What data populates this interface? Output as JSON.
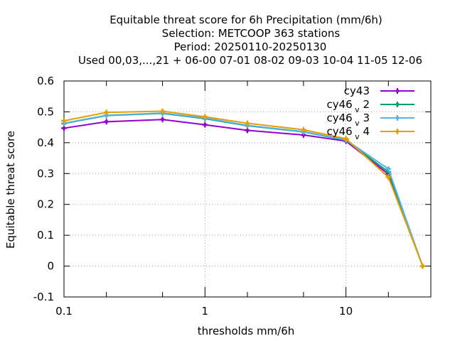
{
  "chart_data": {
    "type": "line",
    "title_lines": [
      "Equitable threat score  for 6h Precipitation (mm/6h)",
      "Selection: METCOOP    363 stations",
      "Period: 20250110-20250130",
      "Used  00,03,...,21  + 06-00 07-01 08-02 09-03 10-04 11-05 12-06"
    ],
    "xlabel": "thresholds mm/6h",
    "ylabel": "Equitable threat score",
    "x_scale": "log",
    "xlim": [
      0.1,
      40
    ],
    "ylim": [
      -0.1,
      0.6
    ],
    "x_ticks": [
      {
        "value": 0.1,
        "label": "0.1"
      },
      {
        "value": 1,
        "label": "1"
      },
      {
        "value": 10,
        "label": "10"
      }
    ],
    "y_ticks": [
      {
        "value": -0.1,
        "label": "-0.1"
      },
      {
        "value": 0,
        "label": "0"
      },
      {
        "value": 0.1,
        "label": "0.1"
      },
      {
        "value": 0.2,
        "label": "0.2"
      },
      {
        "value": 0.3,
        "label": "0.3"
      },
      {
        "value": 0.4,
        "label": "0.4"
      },
      {
        "value": 0.5,
        "label": "0.5"
      },
      {
        "value": 0.6,
        "label": "0.6"
      }
    ],
    "grid": true,
    "legend_position": "top-right",
    "x": [
      0.1,
      0.2,
      0.5,
      1,
      2,
      5,
      10,
      20,
      35
    ],
    "series": [
      {
        "name": "cy43",
        "name_sub": "",
        "color": "#9400d3",
        "values": [
          0.447,
          0.468,
          0.475,
          0.458,
          0.44,
          0.425,
          0.405,
          0.298,
          0.0
        ]
      },
      {
        "name": "cy46",
        "name_sub": "v",
        "name_suffix": "2",
        "color": "#009e73",
        "values": [
          0.462,
          0.488,
          0.495,
          0.478,
          0.455,
          0.435,
          0.408,
          0.305,
          0.0
        ]
      },
      {
        "name": "cy46",
        "name_sub": "v",
        "name_suffix": "3",
        "color": "#56b4e9",
        "values": [
          0.463,
          0.489,
          0.496,
          0.48,
          0.456,
          0.436,
          0.409,
          0.315,
          0.0
        ]
      },
      {
        "name": "cy46",
        "name_sub": "v",
        "name_suffix": "4",
        "color": "#e69f00",
        "values": [
          0.471,
          0.498,
          0.502,
          0.484,
          0.463,
          0.442,
          0.413,
          0.288,
          0.0
        ]
      }
    ]
  }
}
